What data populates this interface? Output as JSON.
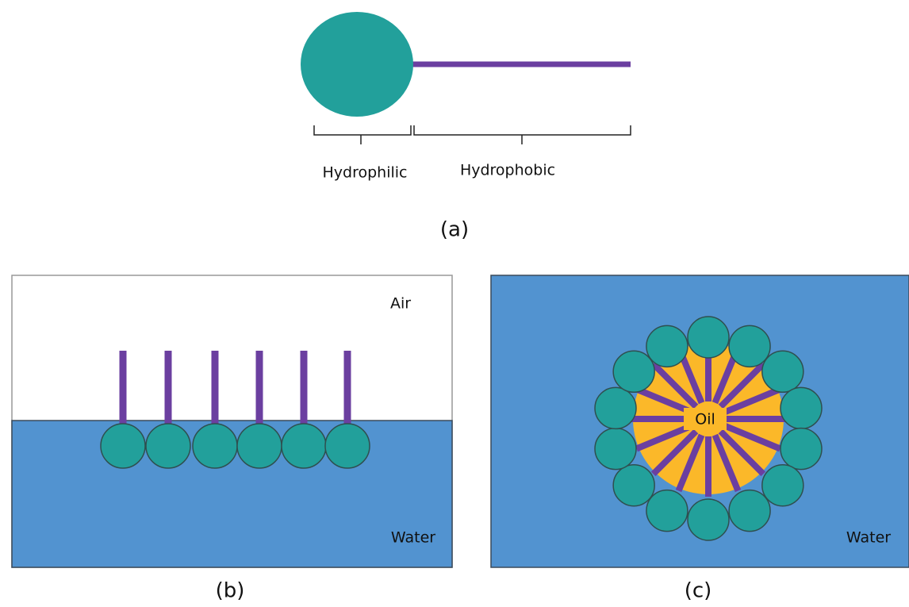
{
  "panel_a": {
    "head_label": "Hydrophilic",
    "tail_label": "Hydrophobic",
    "caption": "(a)"
  },
  "panel_b": {
    "top_label": "Air",
    "bottom_label": "Water",
    "caption": "(b)"
  },
  "panel_c": {
    "core_label": "Oil",
    "medium_label": "Water",
    "caption": "(c)"
  }
}
